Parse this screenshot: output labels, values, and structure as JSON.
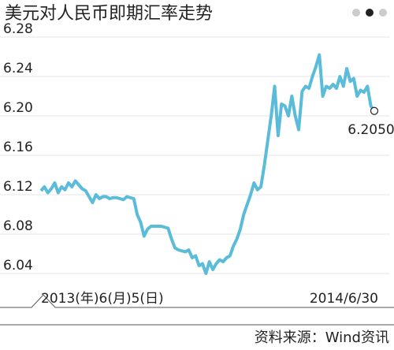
{
  "chart_data": {
    "type": "line",
    "title": "美元对人民币即期汇率走势",
    "source": "资料来源：Wind资讯",
    "categories": [
      "2013(年)6(月)5(日)",
      null,
      null,
      null,
      null,
      null,
      null,
      null,
      null,
      null,
      null,
      null,
      null,
      null,
      null,
      null,
      null,
      null,
      null,
      null,
      null,
      null,
      null,
      null,
      null,
      null,
      null,
      null,
      null,
      null,
      null,
      null,
      null,
      null,
      null,
      null,
      null,
      null,
      null,
      null,
      null,
      null,
      null,
      null,
      null,
      null,
      null,
      null,
      null,
      null,
      null,
      null,
      null,
      null,
      null,
      null,
      null,
      null,
      null,
      null,
      null,
      null,
      null,
      null,
      null,
      null,
      null,
      null,
      null,
      null,
      null,
      null,
      null,
      null,
      null,
      null,
      null,
      null,
      null,
      null,
      null,
      null,
      null,
      null,
      null,
      null,
      null,
      null,
      null,
      null,
      null,
      null,
      null,
      null,
      null,
      null,
      null,
      "2014/6/30"
    ],
    "series": [
      {
        "color": "#5bbcd9",
        "values": [
          6.124,
          6.128,
          6.122,
          6.126,
          6.132,
          6.122,
          6.128,
          6.125,
          6.132,
          6.128,
          6.134,
          6.13,
          6.126,
          6.124,
          6.118,
          6.112,
          6.12,
          6.116,
          6.118,
          6.118,
          6.116,
          6.117,
          6.117,
          6.116,
          6.115,
          6.118,
          6.117,
          6.116,
          6.1,
          6.092,
          6.078,
          6.085,
          6.088,
          6.088,
          6.088,
          6.088,
          6.087,
          6.086,
          6.075,
          6.066,
          6.064,
          6.063,
          6.062,
          6.064,
          6.056,
          6.058,
          6.048,
          6.05,
          6.04,
          6.052,
          6.044,
          6.05,
          6.054,
          6.052,
          6.056,
          6.058,
          6.068,
          6.075,
          6.085,
          6.1,
          6.11,
          6.12,
          6.132,
          6.125,
          6.128,
          6.15,
          6.175,
          6.2,
          6.23,
          6.18,
          6.212,
          6.21,
          6.2,
          6.22,
          6.2,
          6.186,
          6.225,
          6.23,
          6.228,
          6.24,
          6.25,
          6.262,
          6.22,
          6.23,
          6.228,
          6.232,
          6.228,
          6.24,
          6.23,
          6.248,
          6.235,
          6.238,
          6.22,
          6.226,
          6.224,
          6.23,
          6.21,
          6.205
        ],
        "value_labels": [
          null,
          null,
          null,
          null,
          null,
          null,
          null,
          null,
          null,
          null,
          null,
          null,
          null,
          null,
          null,
          null,
          null,
          null,
          null,
          null,
          null,
          null,
          null,
          null,
          null,
          null,
          null,
          null,
          null,
          null,
          null,
          null,
          null,
          null,
          null,
          null,
          null,
          null,
          null,
          null,
          null,
          null,
          null,
          null,
          null,
          null,
          null,
          null,
          null,
          null,
          null,
          null,
          null,
          null,
          null,
          null,
          null,
          null,
          null,
          null,
          null,
          null,
          null,
          null,
          null,
          null,
          null,
          null,
          null,
          null,
          null,
          null,
          null,
          null,
          null,
          null,
          null,
          null,
          null,
          null,
          null,
          null,
          null,
          null,
          null,
          null,
          null,
          null,
          null,
          null,
          null,
          null,
          null,
          null,
          null,
          null,
          null,
          "6.2050"
        ]
      }
    ],
    "ylim": [
      6.0,
      6.3
    ],
    "yticks": [
      6.04,
      6.08,
      6.12,
      6.16,
      {
        "value": 6.2,
        "label": "6.20"
      },
      6.24,
      6.28
    ],
    "grid": true
  }
}
